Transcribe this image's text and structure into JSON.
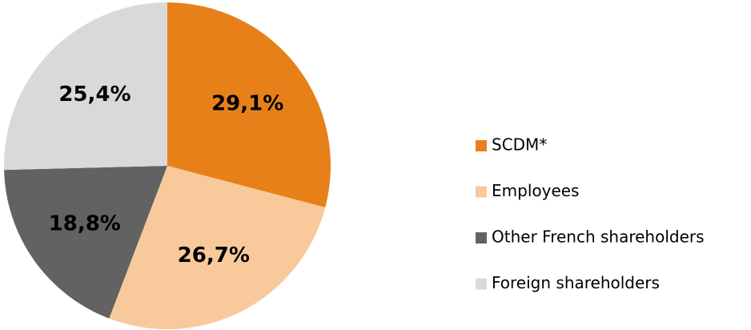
{
  "chart_data": {
    "type": "pie",
    "categories": [
      "SCDM*",
      "Employees",
      "Other French shareholders",
      "Foreign shareholders"
    ],
    "values": [
      29.1,
      26.7,
      18.8,
      25.4
    ],
    "value_labels": [
      "29,1%",
      "26,7%",
      "18,8%",
      "25,4%"
    ],
    "colors": [
      "#e8801a",
      "#f8c99a",
      "#626262",
      "#d9d9d9"
    ],
    "legend": "right"
  }
}
